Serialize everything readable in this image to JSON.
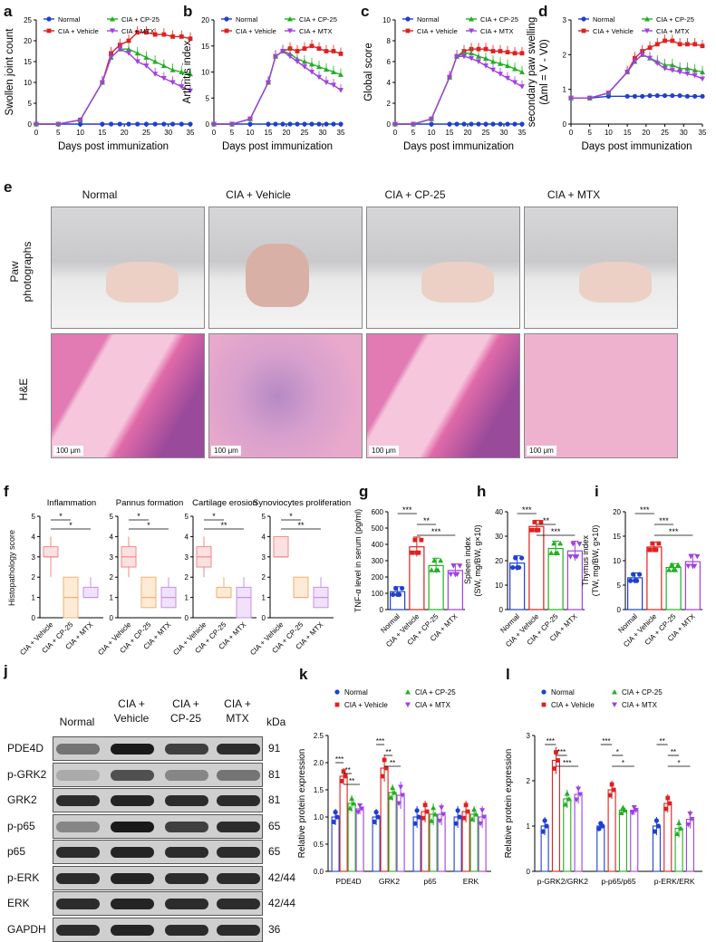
{
  "panel_letters": [
    "a",
    "b",
    "c",
    "d",
    "e",
    "f",
    "g",
    "h",
    "i",
    "j",
    "k",
    "l"
  ],
  "groups": {
    "normal": "Normal",
    "vehicle": "CIA + Vehicle",
    "cp25": "CIA + CP-25",
    "mtx": "CIA + MTX"
  },
  "colors": {
    "normal": "#1f3fd1",
    "vehicle": "#e02020",
    "cp25": "#22b022",
    "mtx": "#a040e0"
  },
  "panel_e": {
    "columns": [
      "Normal",
      "CIA + Vehicle",
      "CIA + CP-25",
      "CIA + MTX"
    ],
    "rows": [
      "Paw\nphotographs",
      "H&E"
    ],
    "scale_bar": "100 μm"
  },
  "panel_f": {
    "ylabel": "Histopathology score",
    "titles": [
      "Inflammation",
      "Pannus formation",
      "Cartilage erosion",
      "Synoviocytes proliferation"
    ]
  },
  "panel_j": {
    "lanes": [
      "Normal",
      "CIA +\nVehicle",
      "CIA +\nCP-25",
      "CIA +\nMTX"
    ],
    "kda_header": "kDa",
    "proteins": [
      {
        "name": "PDE4D",
        "kda": "91"
      },
      {
        "name": "p-GRK2",
        "kda": "81"
      },
      {
        "name": "GRK2",
        "kda": "81"
      },
      {
        "name": "p-p65",
        "kda": "65"
      },
      {
        "name": "p65",
        "kda": "65"
      },
      {
        "name": "p-ERK",
        "kda": "42/44"
      },
      {
        "name": "ERK",
        "kda": "42/44"
      },
      {
        "name": "GAPDH",
        "kda": "36"
      }
    ]
  },
  "chart_data": [
    {
      "panel": "a",
      "type": "line",
      "xlabel": "Days post immunization",
      "ylabel": "Swollen joint count",
      "ylim": [
        0,
        25
      ],
      "yticks": [
        0,
        5,
        10,
        15,
        20,
        25
      ],
      "x": [
        0,
        5,
        10,
        15,
        17,
        19,
        21,
        23,
        25,
        27,
        29,
        31,
        33,
        35
      ],
      "series": [
        {
          "name": "Normal",
          "values": [
            0,
            0,
            0,
            0,
            0,
            0,
            0,
            0,
            0,
            0,
            0,
            0,
            0,
            0
          ]
        },
        {
          "name": "CIA + Vehicle",
          "values": [
            0,
            0,
            1,
            10,
            17,
            19,
            20,
            22,
            22,
            21.5,
            21.5,
            21,
            21,
            20.5
          ]
        },
        {
          "name": "CIA + CP-25",
          "values": [
            0,
            0,
            1,
            10,
            16,
            18,
            18,
            17,
            16,
            15,
            14,
            13,
            12.5,
            12
          ]
        },
        {
          "name": "CIA + MTX",
          "values": [
            0,
            0,
            1,
            10,
            16,
            18,
            17,
            15,
            14,
            12,
            11,
            10,
            9,
            8
          ]
        }
      ]
    },
    {
      "panel": "b",
      "type": "line",
      "xlabel": "Days post immunization",
      "ylabel": "Arthritis index",
      "ylim": [
        0,
        20
      ],
      "yticks": [
        0,
        5,
        10,
        15,
        20
      ],
      "x": [
        0,
        5,
        10,
        15,
        17,
        19,
        21,
        23,
        25,
        27,
        29,
        31,
        33,
        35
      ],
      "series": [
        {
          "name": "Normal",
          "values": [
            0,
            0,
            0,
            0,
            0,
            0,
            0,
            0,
            0,
            0,
            0,
            0,
            0,
            0
          ]
        },
        {
          "name": "CIA + Vehicle",
          "values": [
            0,
            0,
            1,
            8,
            13,
            14,
            14.5,
            14,
            14.5,
            15,
            14.5,
            14,
            14,
            13.5
          ]
        },
        {
          "name": "CIA + CP-25",
          "values": [
            0,
            0,
            1,
            8,
            13,
            14,
            13.5,
            12.5,
            12,
            11.5,
            11,
            10.5,
            10,
            9.5
          ]
        },
        {
          "name": "CIA + MTX",
          "values": [
            0,
            0,
            1,
            8,
            13,
            14,
            13,
            12,
            11,
            10,
            9,
            8,
            7.5,
            6.5
          ]
        }
      ]
    },
    {
      "panel": "c",
      "type": "line",
      "xlabel": "Days post immunization",
      "ylabel": "Global score",
      "ylim": [
        0,
        10
      ],
      "yticks": [
        0,
        2,
        4,
        6,
        8,
        10
      ],
      "x": [
        0,
        5,
        10,
        15,
        17,
        19,
        21,
        23,
        25,
        27,
        29,
        31,
        33,
        35
      ],
      "series": [
        {
          "name": "Normal",
          "values": [
            0,
            0,
            0,
            0,
            0,
            0,
            0,
            0,
            0,
            0,
            0,
            0,
            0,
            0
          ]
        },
        {
          "name": "CIA + Vehicle",
          "values": [
            0,
            0,
            0.5,
            4.5,
            6.5,
            7,
            7.2,
            7.2,
            7.2,
            7,
            7,
            6.9,
            6.8,
            6.8
          ]
        },
        {
          "name": "CIA + CP-25",
          "values": [
            0,
            0,
            0.5,
            4.5,
            6.5,
            6.8,
            6.8,
            6.5,
            6.3,
            6,
            5.8,
            5.6,
            5.3,
            5
          ]
        },
        {
          "name": "CIA + MTX",
          "values": [
            0,
            0,
            0.5,
            4.5,
            6.5,
            6.5,
            6.3,
            6,
            5.6,
            5.2,
            4.8,
            4.4,
            4,
            3.6
          ]
        }
      ]
    },
    {
      "panel": "d",
      "type": "line",
      "xlabel": "Days post immunization",
      "ylabel": "secondary paw swelling\n(Δml = V - V0)",
      "ylim": [
        0,
        3
      ],
      "yticks": [
        0,
        1,
        2,
        3
      ],
      "x": [
        0,
        5,
        10,
        15,
        17,
        19,
        21,
        23,
        25,
        27,
        29,
        31,
        33,
        35
      ],
      "series": [
        {
          "name": "Normal",
          "values": [
            0.75,
            0.75,
            0.8,
            0.8,
            0.8,
            0.8,
            0.82,
            0.82,
            0.82,
            0.82,
            0.82,
            0.8,
            0.8,
            0.8
          ]
        },
        {
          "name": "CIA + Vehicle",
          "values": [
            0.75,
            0.75,
            0.9,
            1.5,
            1.9,
            2.1,
            2.2,
            2.3,
            2.4,
            2.4,
            2.3,
            2.3,
            2.3,
            2.25
          ]
        },
        {
          "name": "CIA + CP-25",
          "values": [
            0.75,
            0.75,
            0.9,
            1.5,
            1.8,
            2.0,
            1.9,
            1.8,
            1.7,
            1.7,
            1.6,
            1.6,
            1.55,
            1.5
          ]
        },
        {
          "name": "CIA + MTX",
          "values": [
            0.75,
            0.75,
            0.9,
            1.5,
            1.8,
            2.0,
            1.9,
            1.75,
            1.6,
            1.55,
            1.5,
            1.45,
            1.4,
            1.3
          ]
        }
      ]
    },
    {
      "panel": "f",
      "type": "box",
      "ylabel": "Histopathology score",
      "ylim": [
        0,
        5
      ],
      "yticks": [
        0,
        1,
        2,
        3,
        4,
        5
      ],
      "categories": [
        "CIA + Vehicle",
        "CIA + CP-25",
        "CIA + MTX"
      ],
      "subplots": [
        {
          "title": "Inflammation",
          "boxes": [
            [
              2,
              3,
              3,
              3.5,
              4
            ],
            [
              0,
              0,
              1,
              2,
              2
            ],
            [
              1,
              1,
              1,
              1.5,
              2
            ]
          ],
          "sig": [
            {
              "a": 0,
              "b": 1,
              "t": "*"
            },
            {
              "a": 0,
              "b": 2,
              "t": "*"
            }
          ]
        },
        {
          "title": "Pannus formation",
          "boxes": [
            [
              2,
              2.5,
              3,
              3.5,
              4
            ],
            [
              0.5,
              0.5,
              1,
              2,
              2
            ],
            [
              0.5,
              0.5,
              1,
              1.5,
              2
            ]
          ],
          "sig": [
            {
              "a": 0,
              "b": 1,
              "t": "*"
            },
            {
              "a": 0,
              "b": 2,
              "t": "*"
            }
          ]
        },
        {
          "title": "Cartilage erosion",
          "boxes": [
            [
              2,
              2.5,
              3,
              3.5,
              4
            ],
            [
              1,
              1,
              1,
              1.5,
              2
            ],
            [
              0,
              0,
              1,
              1.5,
              2
            ]
          ],
          "sig": [
            {
              "a": 0,
              "b": 1,
              "t": "*"
            },
            {
              "a": 0,
              "b": 2,
              "t": "**"
            }
          ]
        },
        {
          "title": "Synoviocytes proliferation",
          "boxes": [
            [
              3,
              3,
              3,
              4,
              4
            ],
            [
              1,
              1,
              1,
              2,
              2
            ],
            [
              0.5,
              0.5,
              1,
              1.5,
              2
            ]
          ],
          "sig": [
            {
              "a": 0,
              "b": 1,
              "t": "*"
            },
            {
              "a": 0,
              "b": 2,
              "t": "**"
            }
          ]
        }
      ]
    },
    {
      "panel": "g",
      "type": "bar",
      "ylabel": "TNF-α level in serum (pg/ml)",
      "ylim": [
        0,
        600
      ],
      "yticks": [
        0,
        100,
        200,
        300,
        400,
        500,
        600
      ],
      "categories": [
        "Normal",
        "CIA + Vehicle",
        "CIA + CP-25",
        "CIA + MTX"
      ],
      "values": [
        110,
        385,
        270,
        240
      ],
      "err": [
        30,
        60,
        45,
        40
      ],
      "sig": [
        {
          "a": 0,
          "b": 1,
          "t": "***"
        },
        {
          "a": 1,
          "b": 2,
          "t": "**"
        },
        {
          "a": 1,
          "b": 3,
          "t": "***"
        }
      ]
    },
    {
      "panel": "h",
      "type": "bar",
      "ylabel": "Spleen index\n(SW, mg/BW, g×10)",
      "ylim": [
        0,
        40
      ],
      "yticks": [
        0,
        10,
        20,
        30,
        40
      ],
      "categories": [
        "Normal",
        "CIA + Vehicle",
        "CIA + CP-25",
        "CIA + MTX"
      ],
      "values": [
        19,
        34,
        25,
        24
      ],
      "err": [
        3,
        2.5,
        3,
        4
      ],
      "sig": [
        {
          "a": 0,
          "b": 1,
          "t": "***"
        },
        {
          "a": 1,
          "b": 2,
          "t": "**"
        },
        {
          "a": 1,
          "b": 3,
          "t": "***"
        }
      ]
    },
    {
      "panel": "i",
      "type": "bar",
      "ylabel": "Thymus index\n(TW, mg/BW, g×10)",
      "ylim": [
        0,
        20
      ],
      "yticks": [
        0,
        5,
        10,
        15,
        20
      ],
      "categories": [
        "Normal",
        "CIA + Vehicle",
        "CIA + CP-25",
        "CIA + MTX"
      ],
      "values": [
        6.5,
        12.8,
        8.6,
        9.8
      ],
      "err": [
        1,
        1,
        0.8,
        1.5
      ],
      "sig": [
        {
          "a": 0,
          "b": 1,
          "t": "***"
        },
        {
          "a": 1,
          "b": 2,
          "t": "***"
        },
        {
          "a": 1,
          "b": 3,
          "t": "***"
        }
      ]
    },
    {
      "panel": "k",
      "type": "bar",
      "ylabel": "Relative protein expression",
      "ylim": [
        0,
        2.5
      ],
      "yticks": [
        0,
        0.5,
        1.0,
        1.5,
        2.0,
        2.5
      ],
      "categories": [
        "PDE4D",
        "GRK2",
        "p65",
        "ERK"
      ],
      "series": [
        {
          "name": "Normal",
          "values": [
            1.0,
            1.0,
            1.0,
            1.0
          ],
          "err": [
            0.15,
            0.15,
            0.2,
            0.2
          ]
        },
        {
          "name": "CIA + Vehicle",
          "values": [
            1.75,
            1.9,
            1.1,
            1.1
          ],
          "err": [
            0.15,
            0.25,
            0.2,
            0.2
          ]
        },
        {
          "name": "CIA + CP-25",
          "values": [
            1.25,
            1.45,
            1.05,
            1.05
          ],
          "err": [
            0.15,
            0.15,
            0.2,
            0.15
          ]
        },
        {
          "name": "CIA + MTX",
          "values": [
            1.15,
            1.4,
            1.05,
            1.0
          ],
          "err": [
            0.1,
            0.25,
            0.2,
            0.2
          ]
        }
      ],
      "sig": [
        {
          "cat": 0,
          "a": 0,
          "b": 1,
          "t": "***"
        },
        {
          "cat": 0,
          "a": 1,
          "b": 2,
          "t": "**"
        },
        {
          "cat": 0,
          "a": 1,
          "b": 3,
          "t": "**"
        },
        {
          "cat": 1,
          "a": 0,
          "b": 1,
          "t": "***"
        },
        {
          "cat": 1,
          "a": 1,
          "b": 2,
          "t": "**"
        },
        {
          "cat": 1,
          "a": 1,
          "b": 3,
          "t": "**"
        }
      ]
    },
    {
      "panel": "l",
      "type": "bar",
      "ylabel": "Relative protein expression",
      "ylim": [
        0,
        3
      ],
      "yticks": [
        0,
        1,
        2,
        3
      ],
      "categories": [
        "p-GRK2/GRK2",
        "p-p65/p65",
        "p-ERK/ERK"
      ],
      "series": [
        {
          "name": "Normal",
          "values": [
            1.0,
            1.0,
            1.0
          ],
          "err": [
            0.2,
            0.1,
            0.2
          ]
        },
        {
          "name": "CIA + Vehicle",
          "values": [
            2.45,
            1.8,
            1.5
          ],
          "err": [
            0.3,
            0.2,
            0.2
          ]
        },
        {
          "name": "CIA + CP-25",
          "values": [
            1.6,
            1.35,
            0.95
          ],
          "err": [
            0.2,
            0.1,
            0.2
          ]
        },
        {
          "name": "CIA + MTX",
          "values": [
            1.7,
            1.35,
            1.15
          ],
          "err": [
            0.2,
            0.1,
            0.2
          ]
        }
      ],
      "sig": [
        {
          "cat": 0,
          "a": 0,
          "b": 1,
          "t": "***"
        },
        {
          "cat": 0,
          "a": 1,
          "b": 2,
          "t": "***"
        },
        {
          "cat": 0,
          "a": 1,
          "b": 3,
          "t": "***"
        },
        {
          "cat": 1,
          "a": 0,
          "b": 1,
          "t": "***"
        },
        {
          "cat": 1,
          "a": 1,
          "b": 2,
          "t": "*"
        },
        {
          "cat": 1,
          "a": 1,
          "b": 3,
          "t": "*"
        },
        {
          "cat": 2,
          "a": 0,
          "b": 1,
          "t": "**"
        },
        {
          "cat": 2,
          "a": 1,
          "b": 2,
          "t": "**"
        },
        {
          "cat": 2,
          "a": 1,
          "b": 3,
          "t": "*"
        }
      ]
    }
  ]
}
